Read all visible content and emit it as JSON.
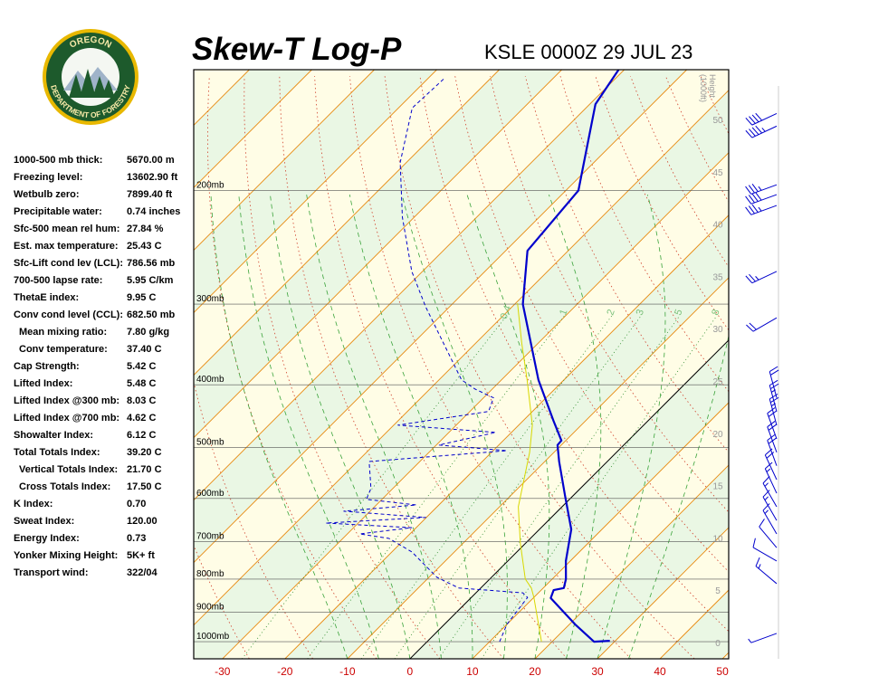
{
  "logo": {
    "top": "OREGON",
    "bottom": "DEPARTMENT OF FORESTRY"
  },
  "header": {
    "title": "Skew-T Log-P",
    "subtitle": "KSLE 0000Z 29 JUL 23"
  },
  "indices": [
    [
      "1000-500 mb thick:",
      "5670.00 m"
    ],
    [
      "Freezing level:",
      "13602.90 ft"
    ],
    [
      "Wetbulb zero:",
      "7899.40 ft"
    ],
    [
      "Precipitable water:",
      "0.74 inches"
    ],
    [
      "Sfc-500 mean rel hum:",
      "27.84 %"
    ],
    [
      "Est. max temperature:",
      "25.43 C"
    ],
    [
      "Sfc-Lift cond lev (LCL):",
      "786.56 mb"
    ],
    [
      "700-500 lapse rate:",
      "5.95 C/km"
    ],
    [
      "ThetaE index:",
      "9.95 C"
    ],
    [
      "Conv cond level (CCL):",
      "682.50 mb"
    ],
    [
      "Mean mixing ratio:",
      "7.80 g/kg"
    ],
    [
      "Conv temperature:",
      "37.40 C"
    ],
    [
      "Cap Strength:",
      "5.42 C"
    ],
    [
      "Lifted Index:",
      "5.48 C"
    ],
    [
      "Lifted Index @300 mb:",
      "8.03 C"
    ],
    [
      "Lifted Index @700 mb:",
      "4.62 C"
    ],
    [
      "Showalter Index:",
      "6.12 C"
    ],
    [
      "Total Totals Index:",
      "39.20 C"
    ],
    [
      "Vertical Totals Index:",
      "21.70 C"
    ],
    [
      "Cross Totals Index:",
      "17.50 C"
    ],
    [
      "K Index:",
      "0.70"
    ],
    [
      "Sweat Index:",
      "120.00"
    ],
    [
      "Energy Index:",
      "0.73"
    ],
    [
      "Yonker Mixing Height:",
      "5K+ ft"
    ],
    [
      "Transport wind:",
      "322/04"
    ]
  ],
  "chart_data": {
    "type": "skewt",
    "log_y": true,
    "skew": 45,
    "xlim": [
      -34.6,
      51
    ],
    "xticks": [
      -30,
      -20,
      -10,
      0,
      10,
      20,
      30,
      40,
      50
    ],
    "ylim": [
      1063,
      130
    ],
    "yticks": [
      {
        "value": 200,
        "label": "200mb"
      },
      {
        "value": 300,
        "label": "300mb"
      },
      {
        "value": 400,
        "label": "400mb"
      },
      {
        "value": 500,
        "label": "500mb"
      },
      {
        "value": 600,
        "label": "600mb"
      },
      {
        "value": 700,
        "label": "700mb"
      },
      {
        "value": 800,
        "label": "800mb"
      },
      {
        "value": 900,
        "label": "900mb"
      },
      {
        "value": 1000,
        "label": "1000mb"
      }
    ],
    "y2lim": [
      -1.56,
      54.76
    ],
    "y2ticks": [
      0,
      5,
      10,
      15,
      20,
      25,
      30,
      35,
      40,
      45,
      50
    ],
    "y2label": [
      "Height",
      "(1000ft)"
    ],
    "mixing_ratios": [
      0.4,
      1,
      2,
      3,
      5,
      8
    ],
    "series": [
      {
        "color": "#0000cc",
        "style": "solid",
        "pressure": [
          997,
          1000,
          940,
          856,
          832,
          826,
          800,
          750,
          670,
          594,
          526,
          496,
          488,
          455,
          393,
          300,
          248,
          200,
          181,
          147,
          130
        ],
        "values": [
          29.1,
          26.7,
          20.9,
          12.8,
          12.0,
          13.3,
          12.2,
          9.3,
          5.1,
          -1.3,
          -7.7,
          -10.6,
          -10.7,
          -15.1,
          -24.1,
          -38.7,
          -46.5,
          -48.0,
          -51.6,
          -59.1,
          -60.9
        ]
      },
      {
        "color": "#0000cc",
        "style": "dashed",
        "pressure": [
          1000,
          940,
          854,
          840,
          826,
          795,
          726,
          692,
          681,
          666,
          655,
          642,
          628,
          614,
          602,
          579,
          526,
          506,
          496,
          474,
          462,
          440,
          419,
          406,
          393,
          303,
          267,
          220,
          181,
          149,
          134
        ],
        "values": [
          11.6,
          10.0,
          9.0,
          7.5,
          -3.5,
          -8.7,
          -16.8,
          -22.6,
          -28.0,
          -20.7,
          -35.2,
          -20.1,
          -34.2,
          -23.6,
          -32.5,
          -33.5,
          -38.1,
          -17.8,
          -29.6,
          -22.5,
          -39.3,
          -27.0,
          -28.4,
          -32.8,
          -36.4,
          -53.8,
          -61.7,
          -71.9,
          -81.0,
          -87.8,
          -87.4
        ]
      },
      {
        "color": "#d8d800",
        "style": "thin",
        "pressure": [
          1000,
          854,
          826,
          800,
          703,
          618,
          509,
          462,
          393,
          345,
          299
        ],
        "values": [
          18.3,
          10.0,
          8.1,
          5.7,
          -0.9,
          -7.0,
          -13.9,
          -17.8,
          -25.9,
          -32.6,
          -39.7
        ]
      }
    ],
    "winds": {
      "pressure": [
        152,
        159,
        196,
        203,
        211,
        267,
        315,
        419,
        440,
        462,
        485,
        509,
        534,
        561,
        589,
        618,
        649,
        681,
        715,
        750,
        813,
        971
      ],
      "direction": [
        245,
        245,
        250,
        250,
        250,
        245,
        240,
        345,
        345,
        345,
        340,
        340,
        340,
        335,
        335,
        330,
        330,
        330,
        320,
        300,
        310,
        250
      ],
      "speed": [
        40,
        45,
        35,
        40,
        35,
        25,
        20,
        20,
        25,
        25,
        20,
        20,
        20,
        20,
        15,
        15,
        15,
        15,
        10,
        10,
        15,
        5
      ]
    }
  }
}
